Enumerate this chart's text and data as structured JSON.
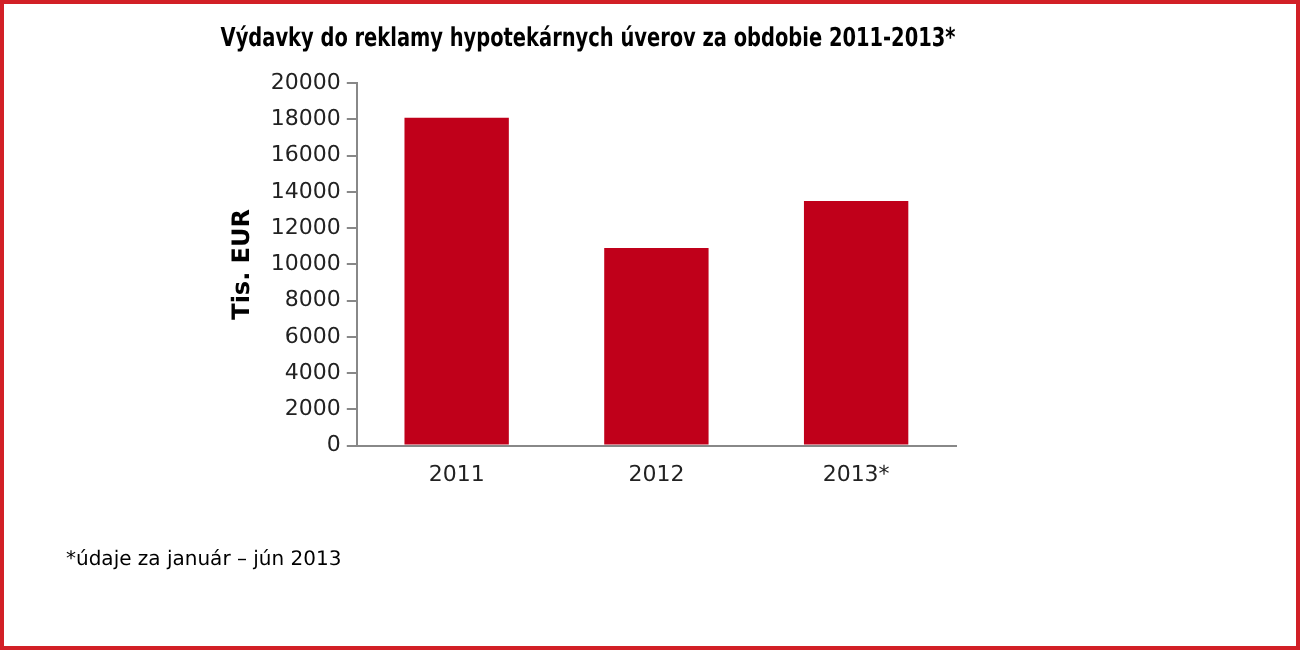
{
  "chart_data": {
    "type": "bar",
    "title": "Výdavky do reklamy hypotekárnych úverov za obdobie 2011-2013*",
    "ylabel": "Tis. EUR",
    "categories": [
      "2011",
      "2012",
      "2013*"
    ],
    "values": [
      18100,
      10900,
      13500
    ],
    "color": "#c0001a",
    "ylim": [
      0,
      20000
    ],
    "yticks": [
      0,
      2000,
      4000,
      6000,
      8000,
      10000,
      12000,
      14000,
      16000,
      18000,
      20000
    ],
    "grid": false,
    "legend": false,
    "annotations": [
      "*údaje za január – jún 2013"
    ]
  }
}
